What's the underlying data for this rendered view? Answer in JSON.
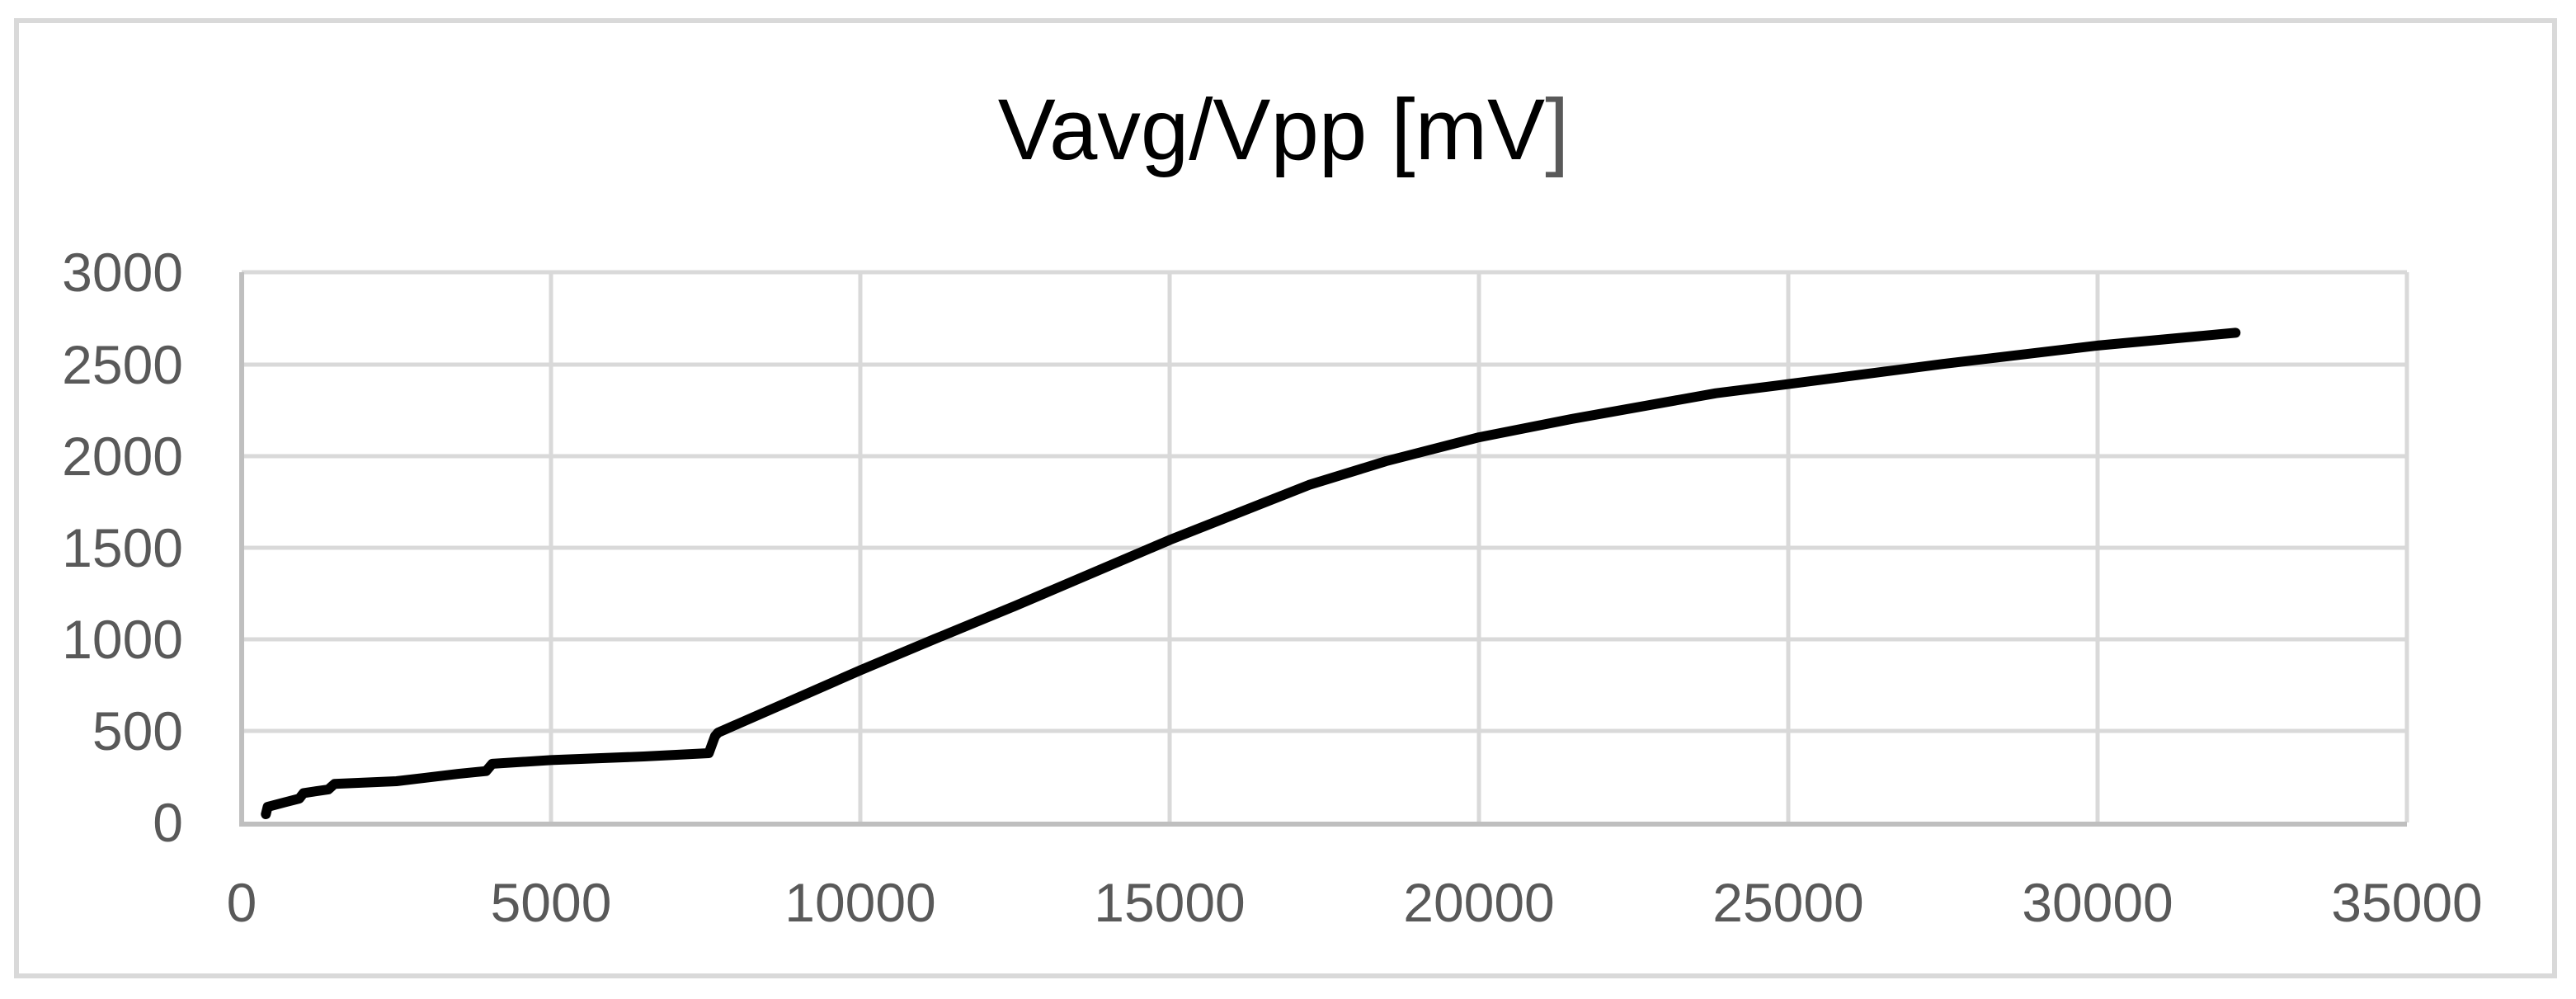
{
  "chart": {
    "title": "Vavg/Vpp [mV]",
    "title_main": "Vavg/Vpp [mV",
    "title_end": "]",
    "y_ticks": [
      "0",
      "500",
      "1000",
      "1500",
      "2000",
      "2500",
      "3000"
    ],
    "x_ticks": [
      "0",
      "5000",
      "10000",
      "15000",
      "20000",
      "25000",
      "30000",
      "35000"
    ],
    "colors": {
      "line": "#000000",
      "grid": "#d9d9d9",
      "axis": "#bfbfbf",
      "tick_text": "#595959",
      "border": "#d9d9d9"
    }
  },
  "chart_data": {
    "type": "line",
    "title": "Vavg/Vpp [mV]",
    "xlabel": "",
    "ylabel": "",
    "xlim": [
      0,
      35000
    ],
    "ylim": [
      0,
      3000
    ],
    "x_ticks": [
      0,
      5000,
      10000,
      15000,
      20000,
      25000,
      30000,
      35000
    ],
    "y_ticks": [
      0,
      500,
      1000,
      1500,
      2000,
      2500,
      3000
    ],
    "grid": true,
    "legend": null,
    "series": [
      {
        "name": "Vavg/Vpp [mV]",
        "color": "#000000",
        "x": [
          390,
          420,
          700,
          930,
          1000,
          1400,
          1500,
          2500,
          3500,
          3950,
          4050,
          5000,
          6500,
          7550,
          7650,
          7700,
          10000,
          11200,
          12500,
          15000,
          17250,
          18500,
          20000,
          21500,
          23830,
          25000,
          27500,
          30000,
          32230
        ],
        "y": [
          45,
          85,
          110,
          130,
          160,
          180,
          210,
          225,
          265,
          280,
          320,
          340,
          360,
          378,
          470,
          490,
          830,
          1000,
          1180,
          1540,
          1840,
          1970,
          2100,
          2200,
          2340,
          2390,
          2500,
          2600,
          2670
        ]
      }
    ]
  }
}
